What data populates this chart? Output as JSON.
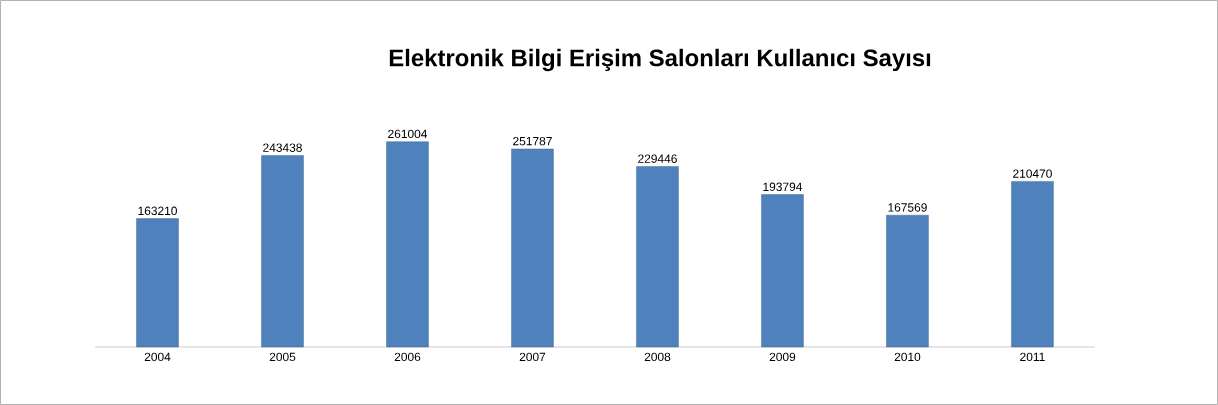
{
  "chart_data": {
    "type": "bar",
    "title": "Elektronik Bilgi Erişim Salonları Kullanıcı Sayısı",
    "categories": [
      "2004",
      "2005",
      "2006",
      "2007",
      "2008",
      "2009",
      "2010",
      "2011"
    ],
    "values": [
      163210,
      243438,
      261004,
      251787,
      229446,
      193794,
      167569,
      210470
    ],
    "color": "#4f81bd",
    "data_labels": true
  }
}
